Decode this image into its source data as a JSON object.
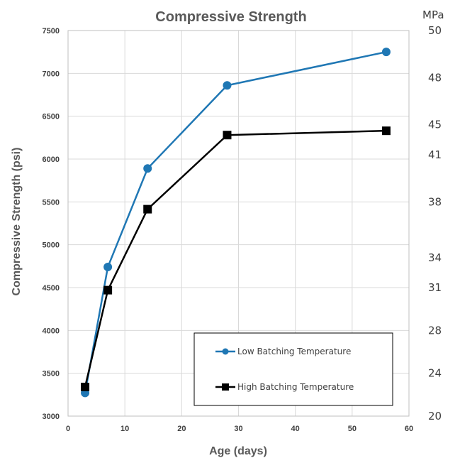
{
  "chart_data": {
    "type": "line",
    "title": "Compressive Strength",
    "xlabel": "Age (days)",
    "ylabel": "Compressive Strength (psi)",
    "xlim": [
      0,
      60
    ],
    "ylim": [
      3000,
      7500
    ],
    "x_ticks": [
      "0",
      "10",
      "20",
      "30",
      "40",
      "50",
      "60"
    ],
    "y_ticks": [
      "3000",
      "3500",
      "4000",
      "4500",
      "5000",
      "5500",
      "6000",
      "6500",
      "7000",
      "7500"
    ],
    "secondary_axis": {
      "unit": "MPa",
      "ticks": [
        {
          "label": "20",
          "at_psi": 3000
        },
        {
          "label": "24",
          "at_psi": 3500
        },
        {
          "label": "28",
          "at_psi": 4000
        },
        {
          "label": "31",
          "at_psi": 4500
        },
        {
          "label": "34",
          "at_psi": 4850
        },
        {
          "label": "38",
          "at_psi": 5500
        },
        {
          "label": "41",
          "at_psi": 6050
        },
        {
          "label": "45",
          "at_psi": 6400
        },
        {
          "label": "48",
          "at_psi": 6950
        },
        {
          "label": "50",
          "at_psi": 7500
        }
      ]
    },
    "grid": true,
    "legend_position": "bottom-right",
    "series": [
      {
        "name": "Low Batching Temperature",
        "color": "#1f77b4",
        "marker": "circle",
        "x": [
          3,
          7,
          14,
          28,
          56
        ],
        "y": [
          3270,
          4740,
          5890,
          6860,
          7250
        ]
      },
      {
        "name": "High Batching Temperature",
        "color": "#000000",
        "marker": "square",
        "x": [
          3,
          7,
          14,
          28,
          56
        ],
        "y": [
          3340,
          4470,
          5415,
          6280,
          6330
        ]
      }
    ]
  }
}
